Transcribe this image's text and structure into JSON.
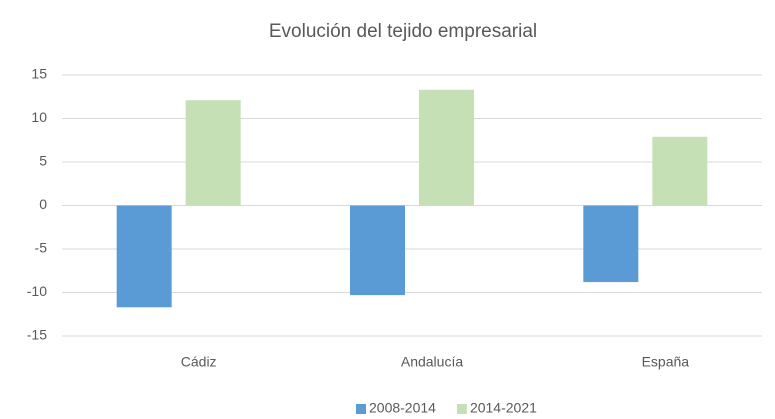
{
  "chart_data": {
    "type": "bar",
    "title": "Evolución del tejido empresarial",
    "categories": [
      "Cádiz",
      "Andalucía",
      "España"
    ],
    "series": [
      {
        "name": "2008-2014",
        "color": "#5b9bd5",
        "values": [
          -11.7,
          -10.3,
          -8.8
        ]
      },
      {
        "name": "2014-2021",
        "color": "#c5e0b4",
        "values": [
          12.1,
          13.3,
          7.9
        ]
      }
    ],
    "ylim": [
      -15,
      15
    ],
    "yticks": [
      -15,
      -10,
      -5,
      0,
      5,
      10,
      15
    ],
    "grid": true,
    "legend": "bottom"
  }
}
